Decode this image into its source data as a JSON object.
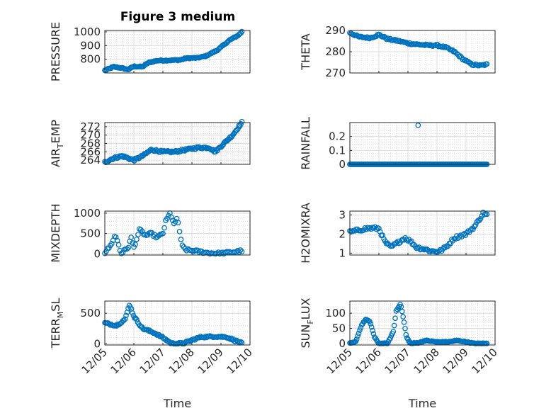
{
  "figure": {
    "title": "Figure 3 medium",
    "marker_color": "#0072BD",
    "time_tick_labels": [
      "12/05",
      "12/06",
      "12/07",
      "12/08",
      "12/09",
      "12/10"
    ],
    "time_label": "Time"
  },
  "chart_data": [
    {
      "type": "scatter",
      "ylabel": "PRESSURE",
      "title": "Figure 3 medium",
      "xlim": [
        0,
        5
      ],
      "ylim": [
        700,
        1010
      ],
      "yticks": [
        800,
        900,
        1000
      ],
      "ytick_labels": [
        "800",
        "900",
        "1000"
      ],
      "grid": true,
      "keys": [
        [
          0.0,
          718
        ],
        [
          0.3,
          745
        ],
        [
          0.6,
          735
        ],
        [
          0.8,
          725
        ],
        [
          1.0,
          748
        ],
        [
          1.3,
          745
        ],
        [
          1.5,
          775
        ],
        [
          1.8,
          790
        ],
        [
          2.2,
          792
        ],
        [
          2.6,
          795
        ],
        [
          2.8,
          808
        ],
        [
          3.2,
          810
        ],
        [
          3.5,
          825
        ],
        [
          3.9,
          870
        ],
        [
          4.3,
          940
        ],
        [
          4.6,
          975
        ],
        [
          4.72,
          1000
        ]
      ],
      "noise": 4,
      "n": 140
    },
    {
      "type": "scatter",
      "ylabel": "THETA",
      "xlim": [
        0,
        5
      ],
      "ylim": [
        270,
        290
      ],
      "yticks": [
        270,
        280,
        290
      ],
      "ytick_labels": [
        "270",
        "280",
        "290"
      ],
      "grid": true,
      "keys": [
        [
          0.0,
          289
        ],
        [
          0.3,
          287
        ],
        [
          0.7,
          286.5
        ],
        [
          1.0,
          288
        ],
        [
          1.3,
          286
        ],
        [
          1.7,
          285
        ],
        [
          2.0,
          284
        ],
        [
          2.3,
          283.5
        ],
        [
          2.7,
          283
        ],
        [
          3.0,
          283
        ],
        [
          3.3,
          282
        ],
        [
          3.6,
          280
        ],
        [
          3.9,
          276.5
        ],
        [
          4.2,
          274
        ],
        [
          4.5,
          273.5
        ],
        [
          4.72,
          274
        ]
      ],
      "noise": 0.4,
      "n": 120
    },
    {
      "type": "scatter",
      "ylabel": "AIR_TEMP",
      "xlim": [
        0,
        5
      ],
      "ylim": [
        263,
        273
      ],
      "yticks": [
        264,
        266,
        268,
        270,
        272
      ],
      "ytick_labels": [
        "264",
        "266",
        "268",
        "270",
        "272"
      ],
      "grid": true,
      "keys": [
        [
          0.0,
          263.5
        ],
        [
          0.3,
          264.5
        ],
        [
          0.6,
          265
        ],
        [
          1.0,
          264
        ],
        [
          1.3,
          265
        ],
        [
          1.6,
          266.5
        ],
        [
          2.0,
          266
        ],
        [
          2.4,
          266
        ],
        [
          2.8,
          266.5
        ],
        [
          3.2,
          267
        ],
        [
          3.6,
          267
        ],
        [
          3.8,
          266
        ],
        [
          4.1,
          268
        ],
        [
          4.4,
          270
        ],
        [
          4.72,
          273
        ]
      ],
      "noise": 0.25,
      "n": 140
    },
    {
      "type": "scatter",
      "ylabel": "RAINFALL",
      "xlim": [
        0,
        5
      ],
      "ylim": [
        0,
        0.3
      ],
      "yticks": [
        0,
        0.1,
        0.2
      ],
      "ytick_labels": [
        "0",
        "0.1",
        "0.2"
      ],
      "grid": true,
      "keys": [
        [
          0.0,
          0
        ],
        [
          4.72,
          0
        ]
      ],
      "noise": 0,
      "n": 160,
      "extra_points": [
        [
          2.35,
          0.28
        ]
      ]
    },
    {
      "type": "scatter",
      "ylabel": "MIXDEPTH",
      "xlim": [
        0,
        5
      ],
      "ylim": [
        -30,
        1050
      ],
      "yticks": [
        0,
        500,
        1000
      ],
      "ytick_labels": [
        "0",
        "500",
        "1000"
      ],
      "grid": true,
      "keys": [
        [
          0.0,
          30
        ],
        [
          0.2,
          200
        ],
        [
          0.35,
          450
        ],
        [
          0.45,
          300
        ],
        [
          0.55,
          10
        ],
        [
          0.8,
          150
        ],
        [
          0.9,
          400
        ],
        [
          1.0,
          150
        ],
        [
          1.2,
          600
        ],
        [
          1.4,
          450
        ],
        [
          1.6,
          500
        ],
        [
          1.8,
          400
        ],
        [
          2.0,
          500
        ],
        [
          2.1,
          800
        ],
        [
          2.25,
          1000
        ],
        [
          2.4,
          700
        ],
        [
          2.5,
          900
        ],
        [
          2.65,
          200
        ],
        [
          2.8,
          100
        ],
        [
          3.2,
          60
        ],
        [
          3.6,
          20
        ],
        [
          4.0,
          10
        ],
        [
          4.72,
          70
        ]
      ],
      "noise": 30,
      "n": 100
    },
    {
      "type": "scatter",
      "ylabel": "H2OMIXRA",
      "xlim": [
        0,
        5
      ],
      "ylim": [
        0.9,
        3.2
      ],
      "yticks": [
        1,
        2,
        3
      ],
      "ytick_labels": [
        "1",
        "2",
        "3"
      ],
      "grid": true,
      "keys": [
        [
          0.0,
          2.1
        ],
        [
          0.3,
          2.2
        ],
        [
          0.6,
          2.3
        ],
        [
          1.0,
          2.3
        ],
        [
          1.2,
          1.6
        ],
        [
          1.4,
          1.3
        ],
        [
          1.6,
          1.5
        ],
        [
          1.9,
          1.8
        ],
        [
          2.1,
          1.6
        ],
        [
          2.3,
          1.3
        ],
        [
          2.6,
          1.2
        ],
        [
          2.8,
          1.1
        ],
        [
          3.1,
          1.1
        ],
        [
          3.3,
          1.3
        ],
        [
          3.6,
          1.8
        ],
        [
          4.0,
          2.0
        ],
        [
          4.3,
          2.4
        ],
        [
          4.6,
          3.1
        ],
        [
          4.72,
          3.0
        ]
      ],
      "noise": 0.08,
      "n": 110
    },
    {
      "type": "scatter",
      "ylabel": "TERR_MSL",
      "xlim": [
        0,
        5
      ],
      "ylim": [
        -20,
        700
      ],
      "yticks": [
        0,
        500
      ],
      "ytick_labels": [
        "0",
        "500"
      ],
      "grid": true,
      "keys": [
        [
          0.0,
          340
        ],
        [
          0.4,
          300
        ],
        [
          0.7,
          400
        ],
        [
          0.85,
          650
        ],
        [
          1.0,
          450
        ],
        [
          1.3,
          250
        ],
        [
          1.7,
          180
        ],
        [
          2.0,
          100
        ],
        [
          2.3,
          5
        ],
        [
          2.7,
          5
        ],
        [
          3.0,
          60
        ],
        [
          3.3,
          110
        ],
        [
          3.8,
          120
        ],
        [
          4.2,
          110
        ],
        [
          4.5,
          50
        ],
        [
          4.72,
          10
        ]
      ],
      "noise": 15,
      "n": 130
    },
    {
      "type": "scatter",
      "ylabel": "SUN_FLUX",
      "xlim": [
        0,
        5
      ],
      "ylim": [
        -5,
        140
      ],
      "yticks": [
        0,
        50,
        100
      ],
      "ytick_labels": [
        "0",
        "50",
        "100"
      ],
      "grid": true,
      "keys": [
        [
          0.0,
          0
        ],
        [
          0.2,
          5
        ],
        [
          0.4,
          60
        ],
        [
          0.55,
          80
        ],
        [
          0.7,
          70
        ],
        [
          0.85,
          20
        ],
        [
          1.0,
          0
        ],
        [
          1.3,
          0
        ],
        [
          1.5,
          40
        ],
        [
          1.6,
          110
        ],
        [
          1.75,
          130
        ],
        [
          1.85,
          80
        ],
        [
          1.95,
          20
        ],
        [
          2.1,
          0
        ],
        [
          2.4,
          3
        ],
        [
          2.6,
          10
        ],
        [
          3.0,
          5
        ],
        [
          3.4,
          5
        ],
        [
          3.7,
          10
        ],
        [
          4.0,
          5
        ],
        [
          4.3,
          0
        ],
        [
          4.72,
          0
        ]
      ],
      "noise": 1.5,
      "n": 140
    }
  ]
}
